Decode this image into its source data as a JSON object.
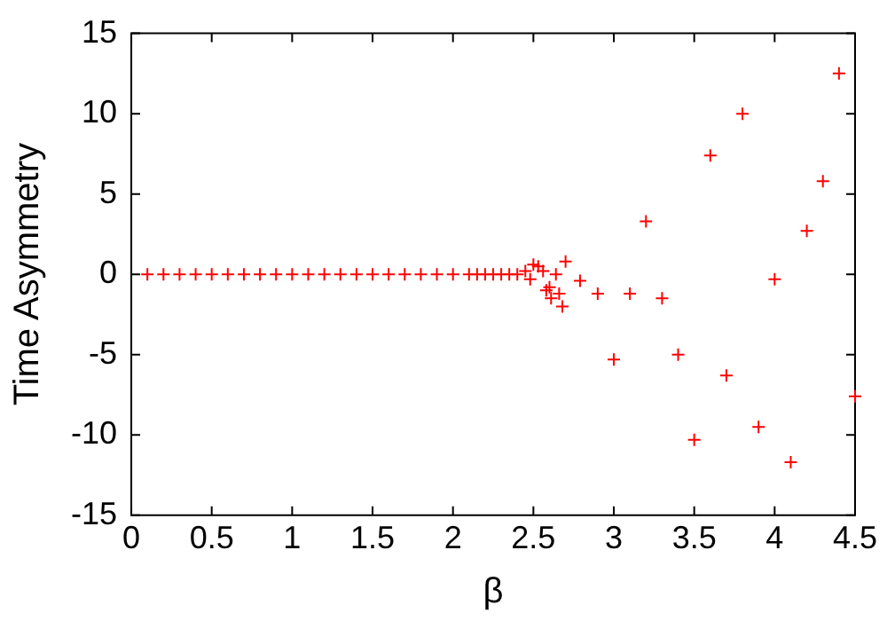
{
  "chart_data": {
    "type": "scatter",
    "xlabel": "β",
    "ylabel": "Time Asymmetry",
    "xlim": [
      0,
      4.5
    ],
    "ylim": [
      -15,
      15
    ],
    "xticks": [
      0,
      0.5,
      1,
      1.5,
      2,
      2.5,
      3,
      3.5,
      4,
      4.5
    ],
    "yticks": [
      -15,
      -10,
      -5,
      0,
      5,
      10,
      15
    ],
    "grid": false,
    "legend": false,
    "marker": "cross",
    "series": [
      {
        "color": "#ff0000",
        "x": [
          0.1,
          0.2,
          0.3,
          0.4,
          0.5,
          0.6,
          0.7,
          0.8,
          0.9,
          1.0,
          1.1,
          1.2,
          1.3,
          1.4,
          1.5,
          1.6,
          1.7,
          1.8,
          1.9,
          2.0,
          2.1,
          2.15,
          2.2,
          2.25,
          2.3,
          2.35,
          2.4,
          2.45,
          2.48,
          2.5,
          2.53,
          2.56,
          2.58,
          2.6,
          2.61,
          2.64,
          2.66,
          2.68,
          2.7,
          2.79,
          2.9,
          3.0,
          3.1,
          3.2,
          3.3,
          3.4,
          3.5,
          3.6,
          3.7,
          3.8,
          3.9,
          4.0,
          4.1,
          4.2,
          4.3,
          4.4,
          4.5
        ],
        "values": [
          0,
          0,
          0,
          0,
          0,
          0,
          0,
          0,
          0,
          0,
          0,
          0,
          0,
          0,
          0,
          0,
          0,
          0,
          0,
          0,
          0,
          0,
          0,
          0,
          0,
          0,
          0,
          0.2,
          -0.3,
          0.6,
          0.5,
          0.2,
          -1.0,
          -0.8,
          -1.5,
          0,
          -1.2,
          -2.0,
          0.8,
          -0.4,
          -1.2,
          -5.3,
          -1.2,
          3.3,
          -1.5,
          -5.0,
          -10.3,
          7.4,
          -6.3,
          10.0,
          -9.5,
          -0.3,
          -11.7,
          2.7,
          5.8,
          12.5,
          -7.6
        ]
      }
    ]
  }
}
